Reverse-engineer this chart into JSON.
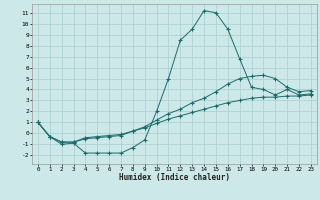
{
  "xlabel": "Humidex (Indice chaleur)",
  "bg_color": "#cce8e8",
  "grid_color": "#aacece",
  "line_color": "#1a6b6a",
  "xlim": [
    -0.5,
    23.5
  ],
  "ylim": [
    -2.8,
    11.8
  ],
  "yticks": [
    -2,
    -1,
    0,
    1,
    2,
    3,
    4,
    5,
    6,
    7,
    8,
    9,
    10,
    11
  ],
  "xticks": [
    0,
    1,
    2,
    3,
    4,
    5,
    6,
    7,
    8,
    9,
    10,
    11,
    12,
    13,
    14,
    15,
    16,
    17,
    18,
    19,
    20,
    21,
    22,
    23
  ],
  "series1_x": [
    0,
    1,
    2,
    3,
    4,
    5,
    6,
    7,
    8,
    9,
    10,
    11,
    12,
    13,
    14,
    15,
    16,
    17,
    18,
    19,
    20,
    21,
    22,
    23
  ],
  "series1_y": [
    1.0,
    -0.3,
    -1.0,
    -0.9,
    -1.8,
    -1.8,
    -1.8,
    -1.8,
    -1.3,
    -0.6,
    2.0,
    5.0,
    8.5,
    9.5,
    11.2,
    11.0,
    9.5,
    6.8,
    4.2,
    4.0,
    3.5,
    4.0,
    3.5,
    3.6
  ],
  "series2_x": [
    0,
    1,
    2,
    3,
    4,
    5,
    6,
    7,
    8,
    9,
    10,
    11,
    12,
    13,
    14,
    15,
    16,
    17,
    18,
    19,
    20,
    21,
    22,
    23
  ],
  "series2_y": [
    1.0,
    -0.3,
    -0.8,
    -0.8,
    -0.5,
    -0.4,
    -0.3,
    -0.2,
    0.2,
    0.6,
    1.2,
    1.8,
    2.2,
    2.8,
    3.2,
    3.8,
    4.5,
    5.0,
    5.2,
    5.3,
    5.0,
    4.2,
    3.8,
    3.9
  ],
  "series3_x": [
    0,
    1,
    2,
    3,
    4,
    5,
    6,
    7,
    8,
    9,
    10,
    11,
    12,
    13,
    14,
    15,
    16,
    17,
    18,
    19,
    20,
    21,
    22,
    23
  ],
  "series3_y": [
    1.0,
    -0.3,
    -0.8,
    -0.8,
    -0.4,
    -0.3,
    -0.2,
    -0.1,
    0.2,
    0.5,
    0.9,
    1.3,
    1.6,
    1.9,
    2.2,
    2.5,
    2.8,
    3.0,
    3.2,
    3.3,
    3.3,
    3.4,
    3.4,
    3.5
  ]
}
